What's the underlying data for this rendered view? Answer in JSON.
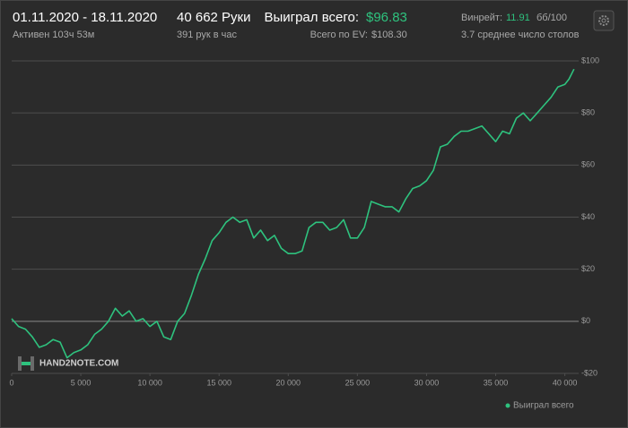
{
  "header": {
    "date_range": "01.11.2020 - 18.11.2020",
    "active": "Активен 103ч 53м",
    "hands": "40 662 Руки",
    "hands_per_hour": "391 рук в час",
    "won_label": "Выиграл всего:",
    "won_value": "$96.83",
    "ev_label": "Всего по EV:",
    "ev_value": "$108.30",
    "winrate_label": "Винрейт:",
    "winrate_value": "11.91",
    "winrate_unit": "бб/100",
    "tables": "3.7 среднее число столов"
  },
  "watermark": "HAND2NOTE.COM",
  "chart_data": {
    "type": "line",
    "x": [
      0,
      500,
      1000,
      1500,
      2000,
      2500,
      3000,
      3500,
      4000,
      4500,
      5000,
      5500,
      6000,
      6500,
      7000,
      7500,
      8000,
      8500,
      9000,
      9500,
      10000,
      10500,
      11000,
      11500,
      12000,
      12500,
      13000,
      13500,
      14000,
      14500,
      15000,
      15500,
      16000,
      16500,
      17000,
      17500,
      18000,
      18500,
      19000,
      19500,
      20000,
      20500,
      21000,
      21500,
      22000,
      22500,
      23000,
      23500,
      24000,
      24500,
      25000,
      25500,
      26000,
      26500,
      27000,
      27500,
      28000,
      28500,
      29000,
      29500,
      30000,
      30500,
      31000,
      31500,
      32000,
      32500,
      33000,
      33500,
      34000,
      34500,
      35000,
      35500,
      36000,
      36500,
      37000,
      37500,
      38000,
      38500,
      39000,
      39500,
      40000,
      40300,
      40662
    ],
    "series": [
      {
        "name": "Выиграл всего",
        "color": "#2ec27e",
        "values": [
          1,
          -2,
          -3,
          -6,
          -10,
          -9,
          -7,
          -8,
          -14,
          -12,
          -11,
          -9,
          -5,
          -3,
          0,
          5,
          2,
          4,
          0,
          1,
          -2,
          0,
          -6,
          -7,
          0,
          3,
          10,
          18,
          24,
          31,
          34,
          38,
          40,
          38,
          39,
          32,
          35,
          31,
          33,
          28,
          26,
          26,
          27,
          36,
          38,
          38,
          35,
          36,
          39,
          32,
          32,
          36,
          46,
          45,
          44,
          44,
          42,
          47,
          51,
          52,
          54,
          58,
          67,
          68,
          71,
          73,
          73,
          74,
          75,
          72,
          69,
          73,
          72,
          78,
          80,
          77,
          80,
          83,
          86,
          90,
          91,
          93,
          96.83
        ]
      }
    ],
    "xlim": [
      0,
      41000
    ],
    "xticks": [
      0,
      {
        "value": 5000,
        "label": "5 000"
      },
      {
        "value": 10000,
        "label": "10 000"
      },
      {
        "value": 15000,
        "label": "15 000"
      },
      {
        "value": 20000,
        "label": "20 000"
      },
      {
        "value": 25000,
        "label": "25 000"
      },
      {
        "value": 30000,
        "label": "30 000"
      },
      {
        "value": 35000,
        "label": "35 000"
      },
      {
        "value": 40000,
        "label": "40 000"
      }
    ],
    "ylim": [
      -20,
      100
    ],
    "yticks": [
      {
        "value": -20,
        "label": "-$20"
      },
      {
        "value": 0,
        "label": "$0"
      },
      {
        "value": 20,
        "label": "$20"
      },
      {
        "value": 40,
        "label": "$40"
      },
      {
        "value": 60,
        "label": "$60"
      },
      {
        "value": 80,
        "label": "$80"
      },
      {
        "value": 100,
        "label": "$100"
      }
    ],
    "grid": true,
    "legend": "bottom-right"
  }
}
